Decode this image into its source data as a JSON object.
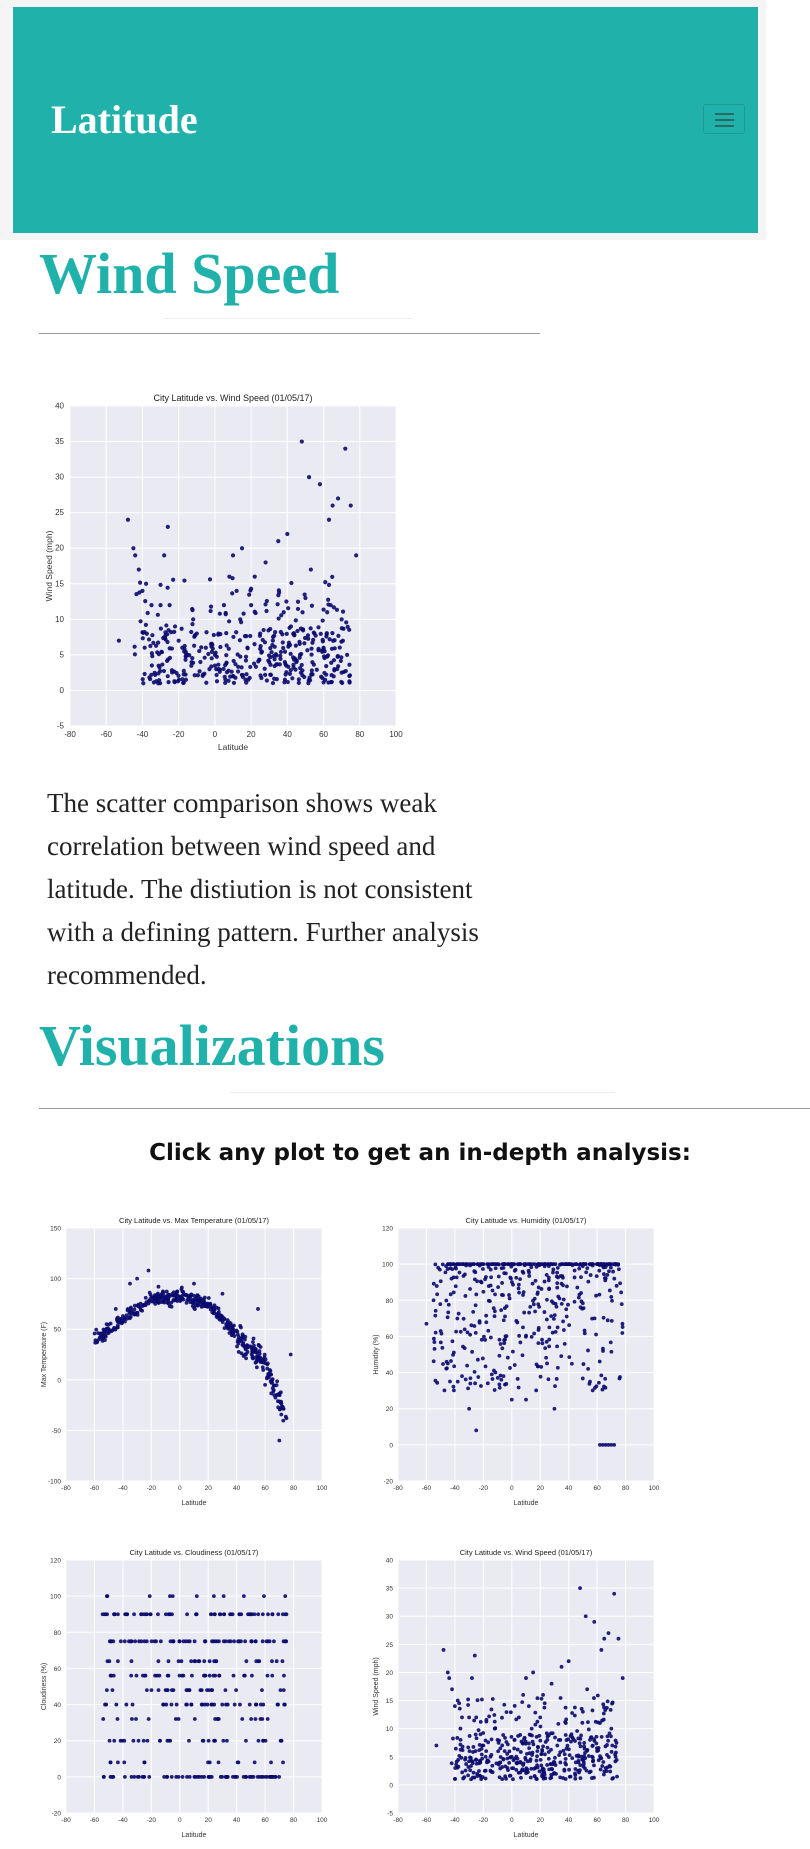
{
  "navbar": {
    "brand": "Latitude",
    "menu_icon": "hamburger-icon",
    "color": "#20b2aa"
  },
  "wind_section": {
    "heading": "Wind Speed",
    "description": "The scatter comparison shows weak correlation between wind speed and latitude. The distiution is not consistent with a defining pattern. Further analysis recommended."
  },
  "viz_section": {
    "heading": "Visualizations",
    "prompt": "Click any plot to get an in-depth analysis:"
  },
  "chart_data": [
    {
      "id": "wind-main",
      "type": "scatter",
      "title": "City Latitude vs. Wind Speed (01/05/17)",
      "xlabel": "Latitude",
      "ylabel": "Wind Speed (mph)",
      "xlim": [
        -80,
        100
      ],
      "ylim": [
        -5,
        40
      ],
      "xticks": [
        -80,
        -60,
        -40,
        -20,
        0,
        20,
        40,
        60,
        80,
        100
      ],
      "yticks": [
        -5,
        0,
        5,
        10,
        15,
        20,
        25,
        30,
        35,
        40
      ],
      "grid": true,
      "marker_color": "#0b0b6e",
      "points": [
        [
          -53,
          7
        ],
        [
          -48,
          24
        ],
        [
          -45,
          20
        ],
        [
          -44,
          19
        ],
        [
          -42,
          17
        ],
        [
          -40,
          14
        ],
        [
          -38,
          15
        ],
        [
          -35,
          12
        ],
        [
          -30,
          12
        ],
        [
          -28,
          19
        ],
        [
          -26,
          23
        ],
        [
          -25,
          12
        ],
        [
          -22,
          9
        ],
        [
          -20,
          7
        ],
        [
          -18,
          6
        ],
        [
          -15,
          5
        ],
        [
          -12,
          10
        ],
        [
          -10,
          8
        ],
        [
          -8,
          4
        ],
        [
          -5,
          6
        ],
        [
          -3,
          3
        ],
        [
          0,
          5
        ],
        [
          2,
          8
        ],
        [
          5,
          12
        ],
        [
          8,
          16
        ],
        [
          10,
          19
        ],
        [
          12,
          14
        ],
        [
          14,
          10
        ],
        [
          15,
          20
        ],
        [
          18,
          6
        ],
        [
          20,
          12
        ],
        [
          22,
          16
        ],
        [
          25,
          8
        ],
        [
          28,
          18
        ],
        [
          30,
          4
        ],
        [
          32,
          7
        ],
        [
          35,
          21
        ],
        [
          38,
          11
        ],
        [
          40,
          22
        ],
        [
          42,
          9
        ],
        [
          45,
          4
        ],
        [
          47,
          5
        ],
        [
          48,
          35
        ],
        [
          50,
          13
        ],
        [
          52,
          30
        ],
        [
          53,
          17
        ],
        [
          55,
          8
        ],
        [
          58,
          29
        ],
        [
          60,
          6
        ],
        [
          62,
          11
        ],
        [
          63,
          24
        ],
        [
          65,
          26
        ],
        [
          66,
          3
        ],
        [
          68,
          27
        ],
        [
          70,
          10
        ],
        [
          72,
          34
        ],
        [
          73,
          5
        ],
        [
          75,
          26
        ],
        [
          78,
          19
        ]
      ],
      "dense_band": {
        "x_range": [
          -40,
          75
        ],
        "y_range": [
          1,
          9
        ],
        "count": 300
      }
    },
    {
      "id": "max-temp",
      "type": "scatter",
      "title": "City Latitude vs. Max Temperature (01/05/17)",
      "xlabel": "Latitude",
      "ylabel": "Max Temperature (F)",
      "xlim": [
        -80,
        100
      ],
      "ylim": [
        -100,
        150
      ],
      "xticks": [
        -80,
        -60,
        -40,
        -20,
        0,
        20,
        40,
        60,
        80,
        100
      ],
      "yticks": [
        -100,
        -50,
        0,
        50,
        100,
        150
      ],
      "grid": true,
      "marker_color": "#0b0b6e",
      "trend": [
        [
          -60,
          40
        ],
        [
          -40,
          60
        ],
        [
          -20,
          80
        ],
        [
          0,
          82
        ],
        [
          20,
          75
        ],
        [
          40,
          45
        ],
        [
          60,
          15
        ],
        [
          75,
          -40
        ]
      ],
      "spread": 12,
      "count": 480,
      "points": [
        [
          -58,
          38
        ],
        [
          -50,
          50
        ],
        [
          -45,
          70
        ],
        [
          -35,
          95
        ],
        [
          -30,
          100
        ],
        [
          -22,
          108
        ],
        [
          -15,
          92
        ],
        [
          10,
          95
        ],
        [
          30,
          85
        ],
        [
          55,
          70
        ],
        [
          60,
          -5
        ],
        [
          70,
          -60
        ],
        [
          78,
          25
        ]
      ]
    },
    {
      "id": "humidity",
      "type": "scatter",
      "title": "City Latitude vs. Humidity (01/05/17)",
      "xlabel": "Latitude",
      "ylabel": "Humidity (%)",
      "xlim": [
        -80,
        100
      ],
      "ylim": [
        -20,
        120
      ],
      "xticks": [
        -80,
        -60,
        -40,
        -20,
        0,
        20,
        40,
        60,
        80,
        100
      ],
      "yticks": [
        -20,
        0,
        20,
        40,
        60,
        80,
        100,
        120
      ],
      "grid": true,
      "marker_color": "#0b0b6e",
      "top_band": {
        "x_range": [
          -45,
          75
        ],
        "y": 100
      },
      "scatter_region": {
        "x_range": [
          -55,
          78
        ],
        "y_range": [
          30,
          100
        ],
        "count": 380
      },
      "points": [
        [
          -60,
          67
        ],
        [
          -55,
          80
        ],
        [
          -50,
          63
        ],
        [
          -45,
          45
        ],
        [
          -38,
          35
        ],
        [
          -35,
          38
        ],
        [
          -30,
          20
        ],
        [
          -25,
          8
        ],
        [
          0,
          25
        ],
        [
          10,
          25
        ],
        [
          30,
          20
        ],
        [
          55,
          35
        ],
        [
          62,
          0
        ],
        [
          64,
          0
        ],
        [
          66,
          0
        ],
        [
          68,
          0
        ],
        [
          70,
          0
        ],
        [
          72,
          0
        ]
      ]
    },
    {
      "id": "cloudiness",
      "type": "scatter",
      "title": "City Latitude vs. Cloudiness (01/05/17)",
      "xlabel": "Latitude",
      "ylabel": "Cloudiness (%)",
      "xlim": [
        -80,
        100
      ],
      "ylim": [
        -20,
        120
      ],
      "xticks": [
        -80,
        -60,
        -40,
        -20,
        0,
        20,
        40,
        60,
        80,
        100
      ],
      "yticks": [
        -20,
        0,
        20,
        40,
        60,
        80,
        100,
        120
      ],
      "grid": true,
      "marker_color": "#0b0b6e",
      "levels": [
        0,
        8,
        20,
        32,
        40,
        48,
        56,
        64,
        75,
        90,
        100
      ],
      "level_density": [
        1,
        0.2,
        0.45,
        0.25,
        0.5,
        0.35,
        0.45,
        0.35,
        0.9,
        0.85,
        0.15
      ],
      "x_range": [
        -55,
        75
      ]
    },
    {
      "id": "wind-small",
      "type": "scatter",
      "title": "City Latitude vs. Wind Speed (01/05/17)",
      "xlabel": "Latitude",
      "ylabel": "Wind Speed (mph)",
      "xlim": [
        -80,
        100
      ],
      "ylim": [
        -5,
        40
      ],
      "xticks": [
        -80,
        -60,
        -40,
        -20,
        0,
        20,
        40,
        60,
        80,
        100
      ],
      "yticks": [
        -5,
        0,
        5,
        10,
        15,
        20,
        25,
        30,
        35,
        40
      ],
      "grid": true,
      "marker_color": "#0b0b6e",
      "mirror_of": "wind-main"
    }
  ]
}
